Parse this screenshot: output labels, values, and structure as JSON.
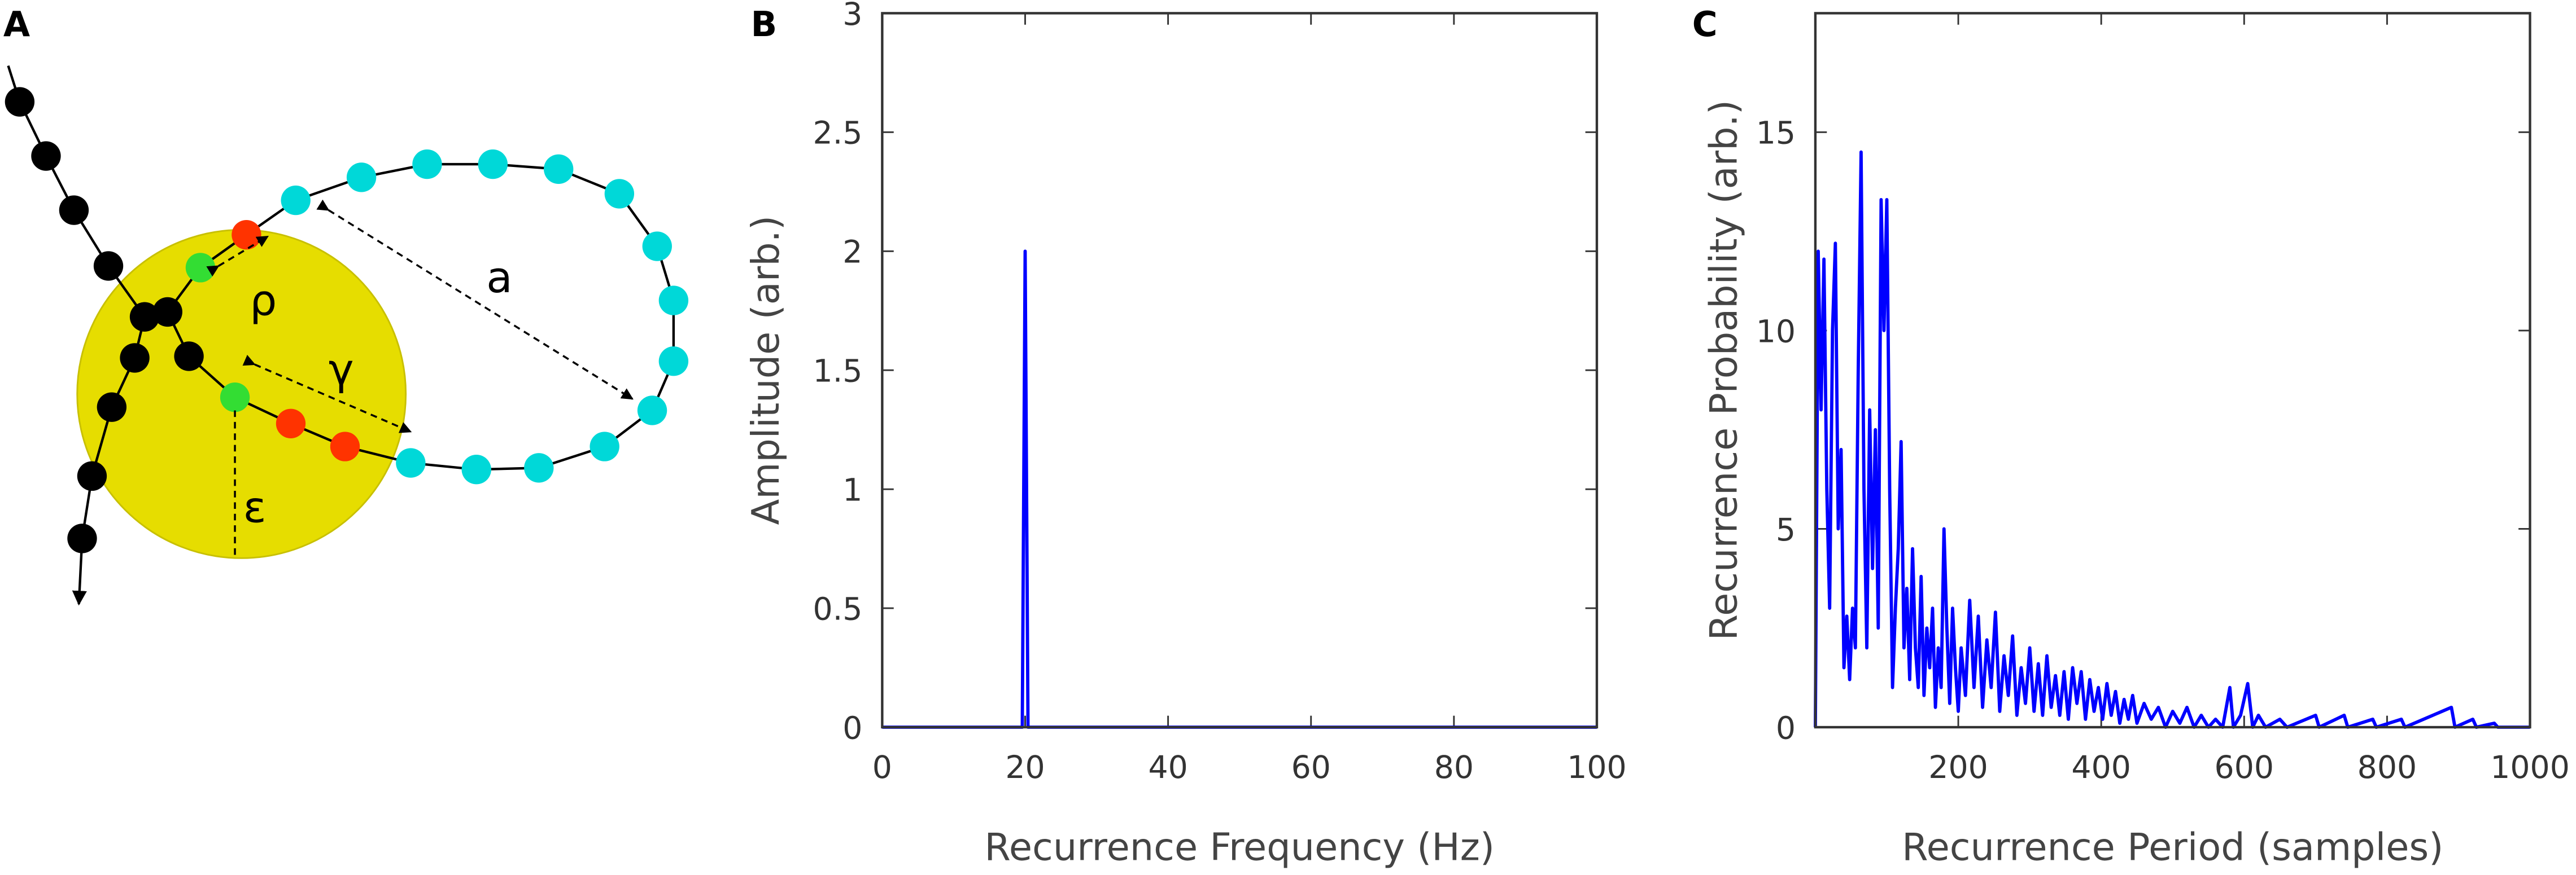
{
  "panels": [
    "A",
    "B",
    "C"
  ],
  "diagram": {
    "labels": [
      "ρ",
      "a",
      "γ",
      "ε"
    ]
  },
  "chart_data": [
    {
      "type": "line",
      "xlabel": "Recurrence Frequency (Hz)",
      "ylabel": "Amplitude (arb.)",
      "xlim": [
        0,
        100
      ],
      "xticks": [
        0,
        20,
        40,
        60,
        80,
        100
      ],
      "ylim": [
        0,
        3
      ],
      "yticks": [
        0,
        0.5,
        1,
        1.5,
        2,
        2.5,
        3
      ],
      "grid": false,
      "series": [
        {
          "color": "#0000ff",
          "x": [
            0,
            19.6,
            20,
            20.4,
            100
          ],
          "values": [
            0,
            0,
            2,
            0,
            0
          ]
        }
      ]
    },
    {
      "type": "line",
      "xlabel": "Recurrence Period (samples)",
      "ylabel": "Recurrence Probability (arb.)",
      "xlim": [
        0,
        1000
      ],
      "xticks": [
        200,
        400,
        600,
        800,
        1000
      ],
      "ylim": [
        0,
        18
      ],
      "yticks": [
        0,
        5,
        10,
        15
      ],
      "grid": false,
      "series": [
        {
          "color": "#0000ff",
          "x": [
            0,
            4,
            8,
            12,
            16,
            20,
            24,
            28,
            32,
            36,
            40,
            44,
            48,
            52,
            56,
            60,
            64,
            68,
            72,
            76,
            80,
            84,
            88,
            92,
            96,
            100,
            104,
            108,
            112,
            116,
            120,
            124,
            128,
            132,
            136,
            140,
            144,
            148,
            152,
            156,
            160,
            164,
            168,
            172,
            176,
            180,
            184,
            188,
            192,
            196,
            200,
            204,
            210,
            216,
            222,
            228,
            234,
            240,
            246,
            252,
            258,
            264,
            270,
            276,
            282,
            288,
            294,
            300,
            306,
            312,
            318,
            324,
            330,
            336,
            342,
            348,
            354,
            360,
            366,
            372,
            378,
            384,
            390,
            396,
            402,
            408,
            414,
            420,
            426,
            432,
            438,
            444,
            450,
            460,
            470,
            480,
            490,
            500,
            510,
            520,
            530,
            540,
            550,
            560,
            570,
            580,
            585,
            595,
            605,
            612,
            620,
            630,
            650,
            660,
            700,
            705,
            740,
            745,
            780,
            785,
            820,
            825,
            890,
            895,
            920,
            925,
            950,
            955,
            1000
          ],
          "values": [
            0,
            12,
            8,
            11.8,
            6,
            3,
            10,
            12.2,
            5,
            7,
            1.5,
            2.8,
            1.2,
            3,
            2,
            9,
            14.5,
            6,
            2,
            8,
            4,
            7.5,
            2.5,
            13.3,
            10,
            13.3,
            6,
            1,
            3,
            4.5,
            7.2,
            2,
            3.5,
            1.2,
            4.5,
            2,
            1,
            3.8,
            0.8,
            2.5,
            1.5,
            3,
            0.5,
            2,
            1,
            5,
            2.5,
            0.6,
            3,
            1.5,
            0.4,
            2,
            0.8,
            3.2,
            1,
            2.8,
            0.5,
            2.2,
            1,
            2.9,
            0.4,
            1.8,
            0.8,
            2.3,
            0.3,
            1.5,
            0.6,
            2,
            0.4,
            1.6,
            0.3,
            1.8,
            0.5,
            1.3,
            0.3,
            1.4,
            0.2,
            1.5,
            0.6,
            1.4,
            0.2,
            1.2,
            0.4,
            1,
            0.2,
            1.1,
            0.3,
            0.9,
            0.1,
            0.7,
            0.2,
            0.8,
            0.1,
            0.6,
            0.2,
            0.5,
            0,
            0.4,
            0.1,
            0.5,
            0,
            0.3,
            0,
            0.2,
            0,
            1,
            0,
            0.3,
            1.1,
            0,
            0.3,
            0,
            0.2,
            0,
            0.3,
            0,
            0.3,
            0,
            0.2,
            0,
            0.2,
            0,
            0.5,
            0,
            0.2,
            0,
            0.1,
            0,
            0
          ]
        }
      ]
    }
  ]
}
